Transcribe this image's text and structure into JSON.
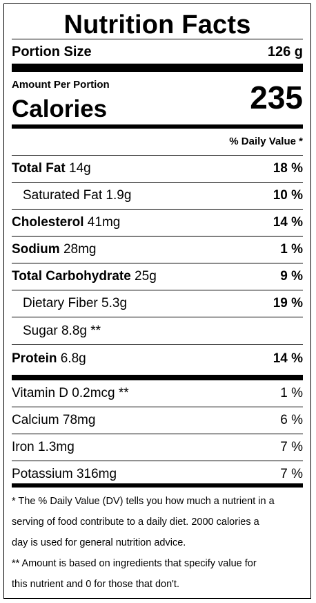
{
  "title": "Nutrition Facts",
  "portion": {
    "label": "Portion Size",
    "value": "126 g"
  },
  "amount_label": "Amount Per Portion",
  "calories": {
    "label": "Calories",
    "value": "235"
  },
  "dv_header": "% Daily Value *",
  "nutrients": [
    {
      "name": "Total Fat",
      "amount": " 14g",
      "dv": "18 %"
    },
    {
      "name": "Saturated Fat",
      "amount": " 1.9g",
      "dv": "10 %"
    },
    {
      "name": "Cholesterol",
      "amount": " 41mg",
      "dv": "14 %"
    },
    {
      "name": "Sodium",
      "amount": " 28mg",
      "dv": "1 %"
    },
    {
      "name": "Total Carbohydrate",
      "amount": " 25g",
      "dv": "9 %"
    },
    {
      "name": "Dietary Fiber",
      "amount": " 5.3g",
      "dv": "19 %"
    },
    {
      "name": "Sugar",
      "amount": " 8.8g **",
      "dv": ""
    },
    {
      "name": "Protein",
      "amount": " 6.8g",
      "dv": "14 %"
    }
  ],
  "vitamins": [
    {
      "name": "Vitamin D 0.2mcg **",
      "dv": "1 %"
    },
    {
      "name": "Calcium 78mg",
      "dv": "6 %"
    },
    {
      "name": "Iron 1.3mg",
      "dv": "7 %"
    },
    {
      "name": "Potassium 316mg",
      "dv": "7 %"
    }
  ],
  "footnotes": [
    "* The % Daily Value (DV) tells you how much a nutrient in a",
    "serving of food contribute to a daily diet. 2000 calories a",
    "day is used for general nutrition advice.",
    "** Amount is based on ingredients that specify value for",
    "this nutrient and 0 for those that don't."
  ]
}
